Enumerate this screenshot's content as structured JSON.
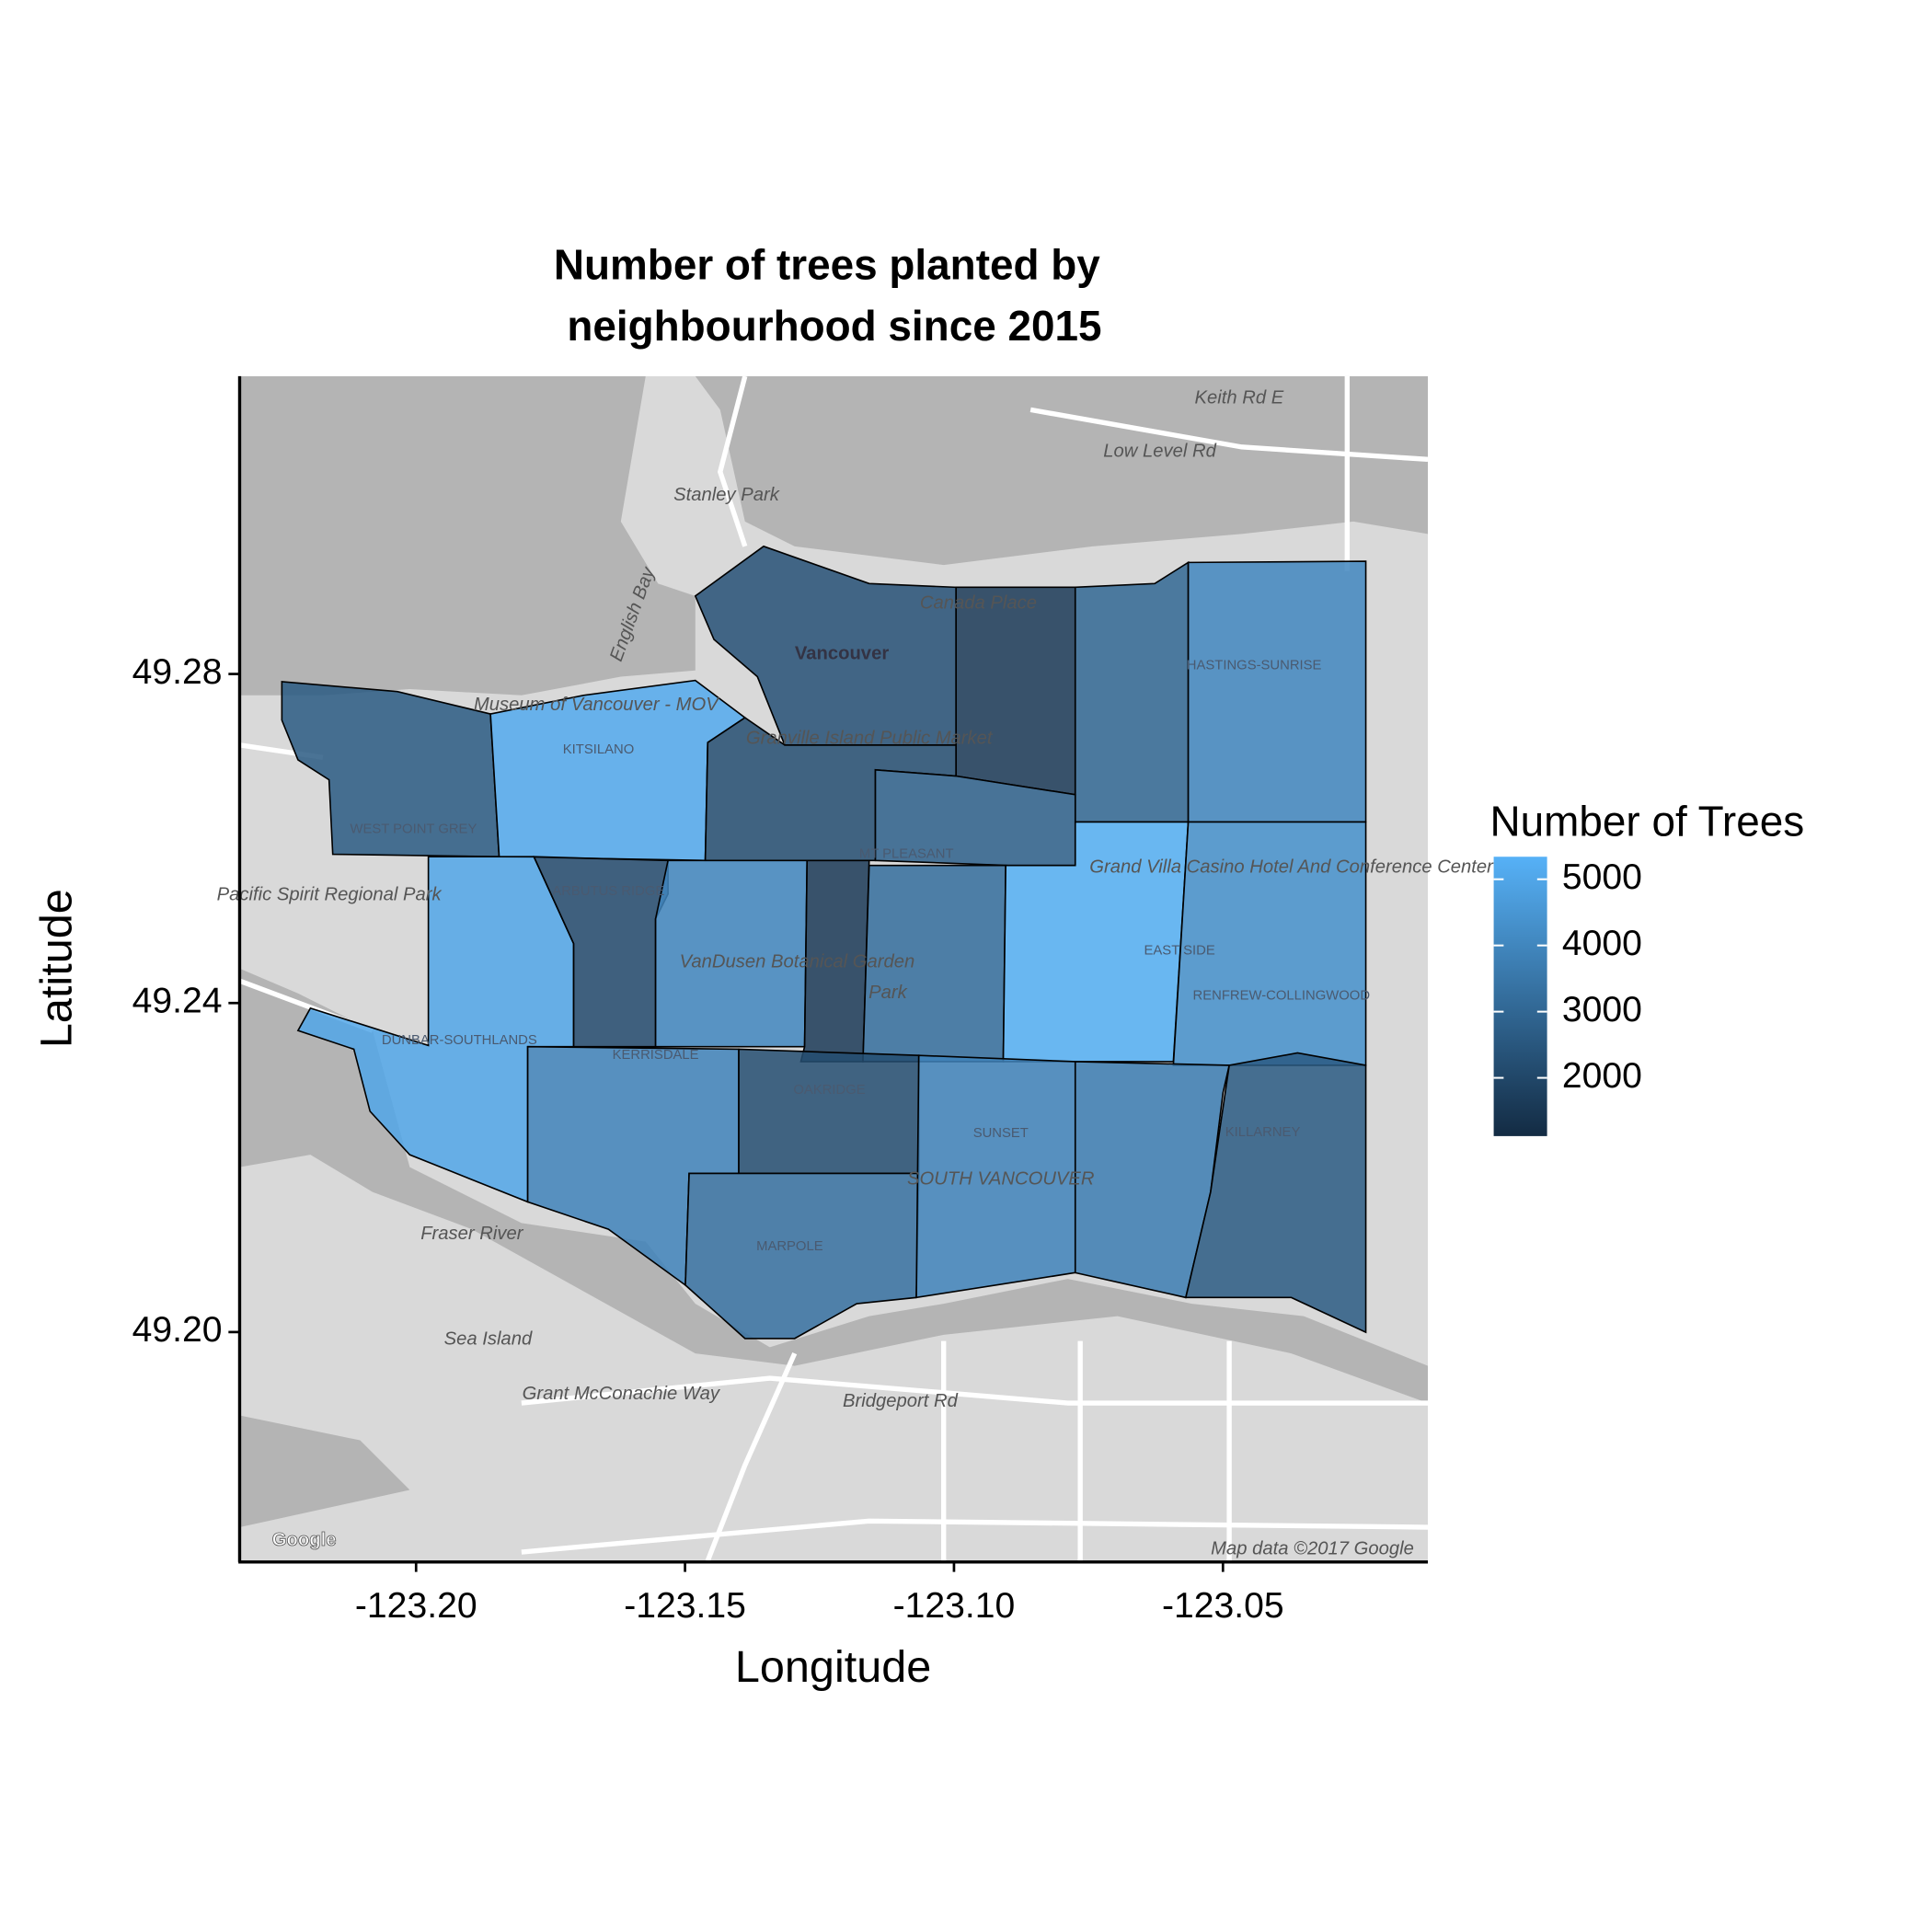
{
  "chart_data": {
    "type": "choropleth",
    "title": [
      "Number of trees planted by",
      "neighbourhood since 2015"
    ],
    "x_label": "Longitude",
    "y_label": "Latitude",
    "xlim": [
      -123.2328,
      -123.0119
    ],
    "ylim": [
      49.1722,
      49.3162
    ],
    "xticks": [
      {
        "value": -123.2,
        "label": "-123.20"
      },
      {
        "value": -123.15,
        "label": "-123.15"
      },
      {
        "value": -123.1,
        "label": "-123.10"
      },
      {
        "value": -123.05,
        "label": "-123.05"
      }
    ],
    "yticks": [
      {
        "value": 49.28,
        "label": "49.28"
      },
      {
        "value": 49.24,
        "label": "49.24"
      },
      {
        "value": 49.2,
        "label": "49.20"
      }
    ],
    "legend_title": "Number of Trees",
    "color_low": "#132B43",
    "color_high": "#56B1F7",
    "colorbar_lim": [
      1120,
      5340
    ],
    "colorbar_ticks": [
      2000,
      3000,
      4000,
      5000
    ],
    "regions": [
      "WEST POINT GREY",
      "KITSILANO",
      null,
      null,
      null,
      null,
      "HASTINGS-SUNRISE",
      "MT PLEASANT",
      "DUNBAR-SOUTHLANDS",
      "ARBUTUS RIDGE",
      null,
      null,
      null,
      "EAST SIDE",
      "RENFREW-COLLINGWOOD",
      "KERRISDALE",
      "OAKRIDGE",
      "MARPOLE",
      "SUNSET",
      null,
      "KILLARNEY"
    ],
    "values": [
      2600,
      5100,
      2200,
      2300,
      1600,
      3000,
      4000,
      2800,
      5000,
      2100,
      4000,
      1600,
      3200,
      5300,
      4300,
      3900,
      2200,
      3300,
      3900,
      3700,
      2600
    ],
    "map_labels": [
      "Stanley Park",
      "English Bay",
      "Vancouver",
      "Canada Place",
      "Museum of Vancouver - MOV",
      "Granville Island Public Market",
      "Pacific Spirit Regional Park",
      "VanDusen Botanical Garden",
      "Park",
      "Grand Villa Casino Hotel And Conference Center",
      "Fraser River",
      "Sea Island",
      "SOUTH VANCOUVER",
      "Grant McConachie Way",
      "Bridgeport Rd",
      "Keith Rd E",
      "Low Level Rd",
      "Google",
      "Map data ©2017 Google"
    ]
  }
}
